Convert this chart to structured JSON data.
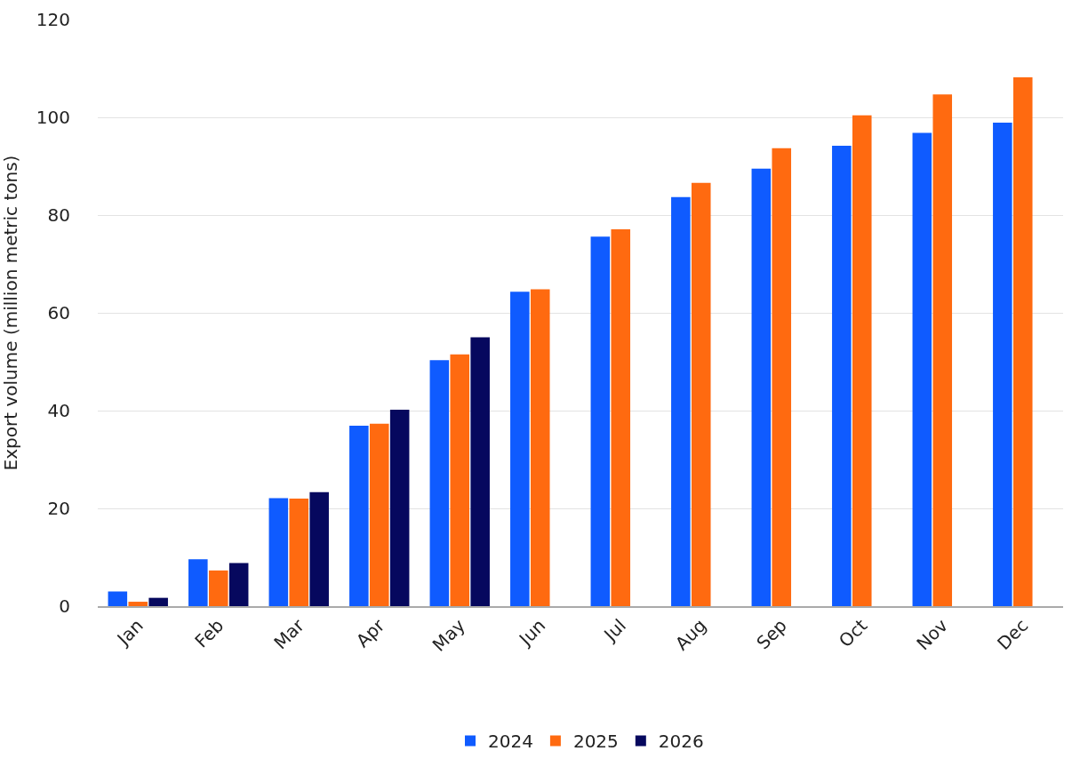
{
  "chart_data": {
    "type": "bar",
    "ylabel": "Export volume (million metric tons)",
    "categories": [
      "Jan",
      "Feb",
      "Mar",
      "Apr",
      "May",
      "Jun",
      "Jul",
      "Aug",
      "Sep",
      "Oct",
      "Nov",
      "Dec"
    ],
    "series": [
      {
        "name": "2024",
        "color": "#0f5bff",
        "values": [
          3.0,
          9.6,
          22.1,
          36.9,
          50.3,
          64.3,
          75.6,
          83.7,
          89.5,
          94.2,
          96.8,
          98.9
        ]
      },
      {
        "name": "2025",
        "color": "#ff6a10",
        "values": [
          0.9,
          7.3,
          22.0,
          37.3,
          51.5,
          64.8,
          77.1,
          86.6,
          93.7,
          100.4,
          104.7,
          108.2
        ]
      },
      {
        "name": "2026",
        "color": "#06085e",
        "values": [
          1.7,
          8.8,
          23.3,
          40.2,
          55.0,
          null,
          null,
          null,
          null,
          null,
          null,
          null
        ]
      }
    ],
    "ylim": [
      0,
      120
    ],
    "yticks": [
      0,
      20,
      40,
      60,
      80,
      100,
      120
    ],
    "grid": "y",
    "legend": "bottom"
  }
}
